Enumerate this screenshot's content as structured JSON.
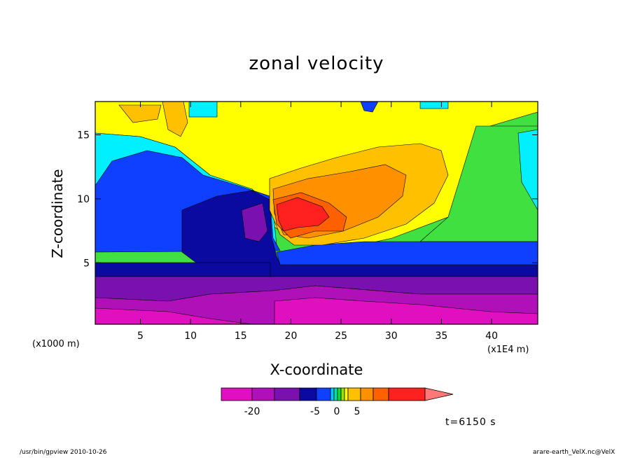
{
  "chart_data": {
    "type": "contour",
    "title": "zonal velocity",
    "xlabel": "X-coordinate",
    "ylabel": "Z-coordinate",
    "x_unit": "(x1000 m)",
    "z_unit": "(x1E4 m)",
    "xlim": [
      0.5,
      44.6
    ],
    "ylim": [
      0.2,
      17.6
    ],
    "x_ticks": [
      5,
      10,
      15,
      20,
      25,
      30,
      35,
      40
    ],
    "y_ticks": [
      5,
      10,
      15
    ],
    "time_label": "t=6150 s",
    "colorbar": {
      "tick_labels": [
        "-20",
        "-5",
        "0",
        "5"
      ],
      "colors": [
        "#e010c0",
        "#b010b8",
        "#7a10b0",
        "#0a0aa0",
        "#1040ff",
        "#00c8ff",
        "#00e0a0",
        "#00e040",
        "#a0e000",
        "#ffff00",
        "#ffc000",
        "#ff9000",
        "#ff6000",
        "#ff2020",
        "#ff7878"
      ]
    },
    "regions": {
      "level_m25": "#e010c0",
      "level_m20": "#b010b8",
      "level_m15": "#7a10b0",
      "level_m10": "#0a0aa0",
      "level_m5": "#1040ff",
      "level_m1": "#00f0ff",
      "level_0": "#40e040",
      "level_1": "#ffff00",
      "level_5": "#ffa000",
      "level_10": "#ff8800",
      "level_15": "#ff2020"
    }
  },
  "footer": {
    "left": "/usr/bin/gpview  2010-10-26",
    "right": "arare-earth_VelX.nc@VelX"
  }
}
